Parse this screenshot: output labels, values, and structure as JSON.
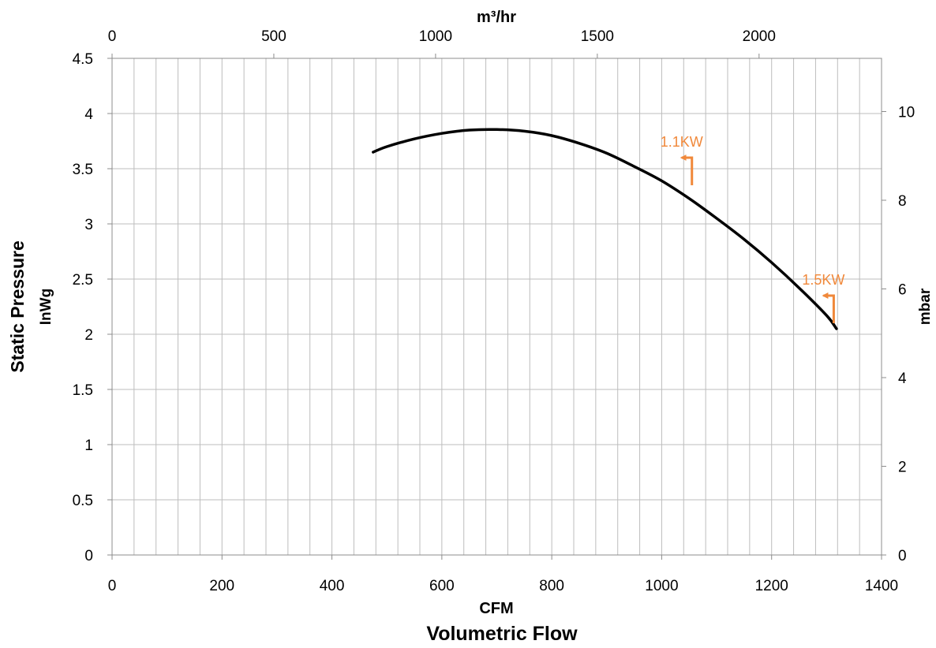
{
  "chart_data": {
    "type": "line",
    "title": "",
    "xlabel": "CFM",
    "xlabel_group": "Volumetric Flow",
    "ylabel": "Static Pressure",
    "ylabel_unit": "InWg",
    "x2label": "m³/hr",
    "y2label": "mbar",
    "xlim": [
      0,
      1400
    ],
    "ylim": [
      0,
      4.5
    ],
    "x2lim": [
      0,
      2378.6
    ],
    "y2lim": [
      0,
      11.2
    ],
    "grid": true,
    "x_ticks": [
      "0",
      "200",
      "400",
      "600",
      "800",
      "1000",
      "1200",
      "1400"
    ],
    "y_ticks": [
      "0",
      "0.5",
      "1",
      "1.5",
      "2",
      "2.5",
      "3",
      "3.5",
      "4",
      "4.5"
    ],
    "x2_ticks": [
      "0",
      "500",
      "1000",
      "1500",
      "2000"
    ],
    "y2_ticks": [
      "0",
      "2",
      "4",
      "6",
      "8",
      "10"
    ],
    "series": [
      {
        "color": "#000000",
        "x": [
          475,
          500,
          550,
          600,
          650,
          700,
          750,
          800,
          850,
          900,
          950,
          1000,
          1050,
          1100,
          1150,
          1200,
          1250,
          1300,
          1318
        ],
        "y": [
          3.65,
          3.7,
          3.77,
          3.82,
          3.85,
          3.855,
          3.84,
          3.8,
          3.73,
          3.64,
          3.52,
          3.39,
          3.23,
          3.05,
          2.86,
          2.65,
          2.42,
          2.17,
          2.05
        ]
      }
    ],
    "annotations": [
      {
        "text": "1.1KW",
        "x": 1055,
        "y": 3.35,
        "color": "#f0883a"
      },
      {
        "text": "1.5KW",
        "x": 1313,
        "y": 2.1,
        "color": "#f0883a"
      }
    ]
  }
}
